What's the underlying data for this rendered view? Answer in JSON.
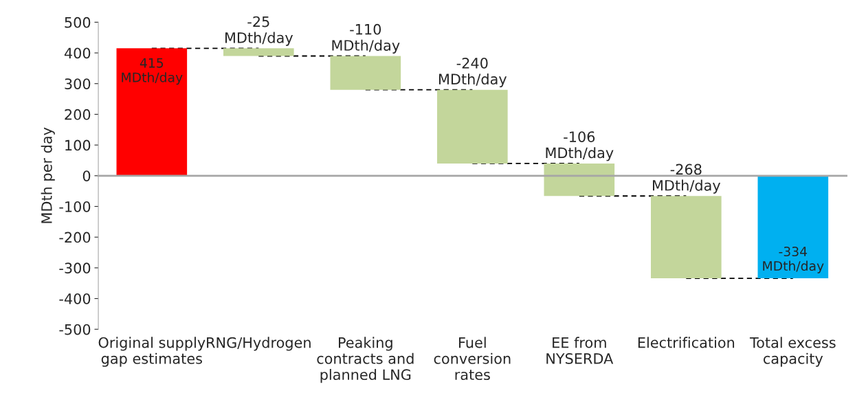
{
  "chart_data": {
    "type": "bar",
    "ylabel": "MDth per day",
    "categories": [
      "Original supply\ngap estimates",
      "RNG/Hydrogen",
      "Peaking\ncontracts and\nplanned LNG",
      "Fuel\nconversion\nrates",
      "EE from\nNYSERDA",
      "Electrification",
      "Total excess\ncapacity"
    ],
    "values": [
      415,
      -25,
      -110,
      -240,
      -106,
      -268,
      -334
    ],
    "base": [
      0,
      415,
      390,
      280,
      40,
      -66,
      0
    ],
    "colors": [
      "#ff0000",
      "#c3d69b",
      "#c3d69b",
      "#c3d69b",
      "#c3d69b",
      "#c3d69b",
      "#00b0f0"
    ],
    "value_labels": [
      "415\nMDth/day",
      "-25\nMDth/day",
      "-110\nMDth/day",
      "-240\nMDth/day",
      "-106\nMDth/day",
      "-268\nMDth/day",
      "-334\nMDth/day"
    ],
    "ylim": [
      -500,
      500
    ],
    "yticks": [
      -500,
      -400,
      -300,
      -200,
      -100,
      0,
      100,
      200,
      300,
      400,
      500
    ]
  }
}
